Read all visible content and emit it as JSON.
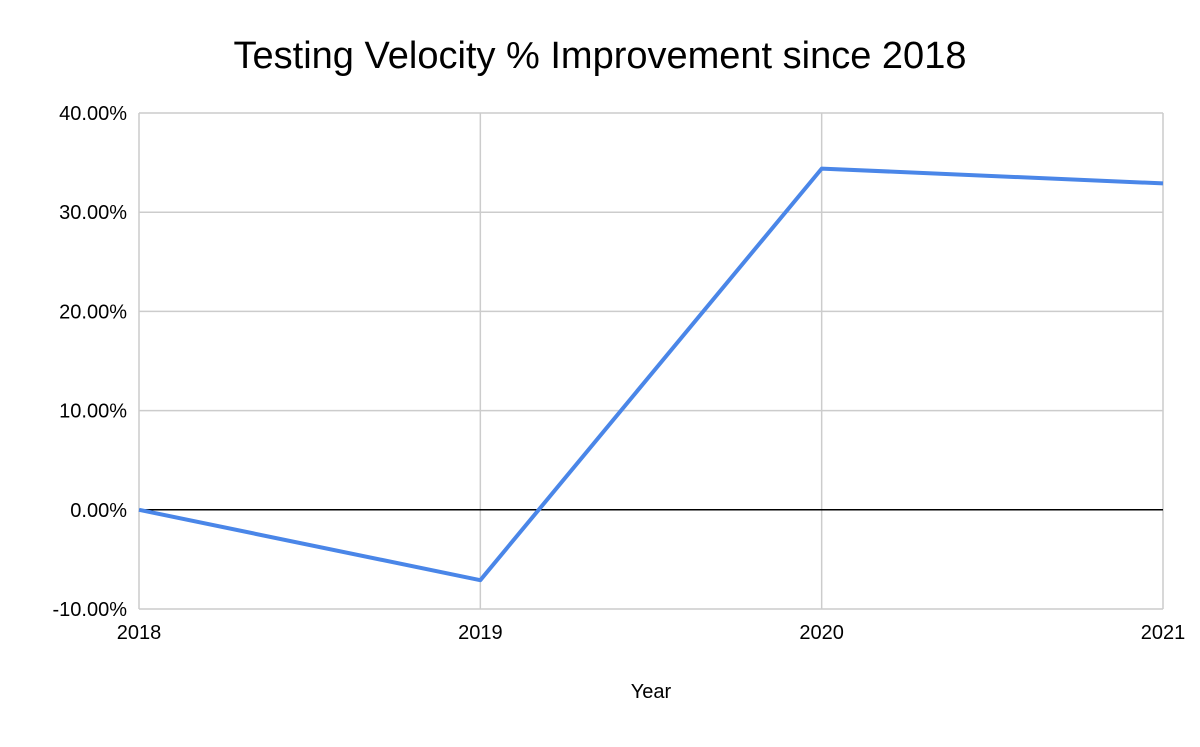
{
  "chart_data": {
    "type": "line",
    "title": "Testing Velocity % Improvement since 2018",
    "xlabel": "Year",
    "ylabel": "",
    "categories": [
      "2018",
      "2019",
      "2020",
      "2021"
    ],
    "series": [
      {
        "name": "Testing Velocity % Improvement",
        "values": [
          0.0,
          -7.1,
          34.4,
          32.9
        ],
        "color": "#4a86e8"
      }
    ],
    "ylim": [
      -10,
      40
    ],
    "y_ticks": [
      40,
      30,
      20,
      10,
      0,
      -10
    ],
    "y_tick_labels": [
      "40.00%",
      "30.00%",
      "20.00%",
      "10.00%",
      "0.00%",
      "-10.00%"
    ],
    "x_tick_labels": [
      "2018",
      "2019",
      "2020",
      "2021"
    ],
    "grid": true,
    "gridline_color": "#cccccc",
    "zero_line_color": "#000000",
    "legend": "none"
  }
}
